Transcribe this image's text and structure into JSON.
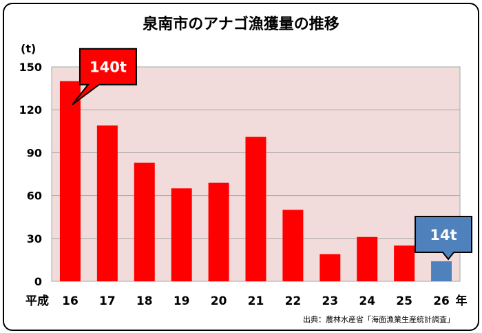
{
  "chart_data": {
    "type": "bar",
    "title": "泉南市のアナゴ漁獲量の推移",
    "ylabel": "(t)",
    "era_label": "平成",
    "year_suffix": "年",
    "categories": [
      "16",
      "17",
      "18",
      "19",
      "20",
      "21",
      "22",
      "23",
      "24",
      "25",
      "26"
    ],
    "values": [
      140,
      109,
      83,
      65,
      69,
      101,
      50,
      19,
      31,
      25,
      14
    ],
    "ylim": [
      0,
      150
    ],
    "yticks": [
      0,
      30,
      60,
      90,
      120,
      150
    ],
    "grid": true,
    "bar_colors": [
      "#ff0000",
      "#ff0000",
      "#ff0000",
      "#ff0000",
      "#ff0000",
      "#ff0000",
      "#ff0000",
      "#ff0000",
      "#ff0000",
      "#ff0000",
      "#4f81bd"
    ],
    "plot_background": "#f2dcdb",
    "annotations": [
      {
        "text": "140t",
        "category": "16",
        "color": "#ff0000"
      },
      {
        "text": "14t",
        "category": "26",
        "color": "#4f81bd"
      }
    ],
    "source": "出典：農林水産省「海面漁業生産統計調査」"
  }
}
